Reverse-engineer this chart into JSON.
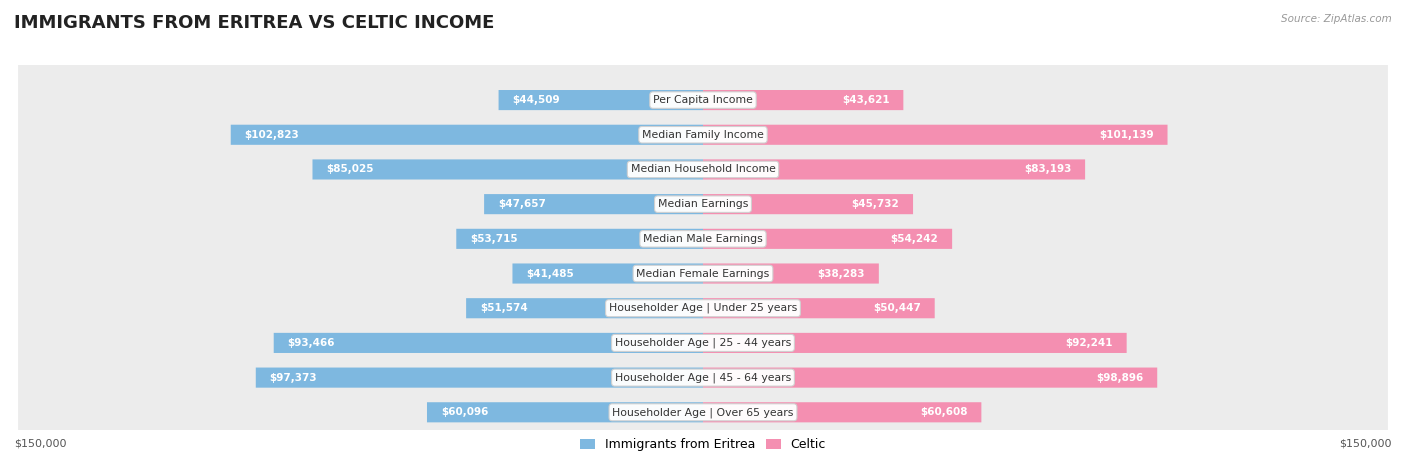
{
  "title": "IMMIGRANTS FROM ERITREA VS CELTIC INCOME",
  "source": "Source: ZipAtlas.com",
  "categories": [
    "Per Capita Income",
    "Median Family Income",
    "Median Household Income",
    "Median Earnings",
    "Median Male Earnings",
    "Median Female Earnings",
    "Householder Age | Under 25 years",
    "Householder Age | 25 - 44 years",
    "Householder Age | 45 - 64 years",
    "Householder Age | Over 65 years"
  ],
  "eritrea_values": [
    44509,
    102823,
    85025,
    47657,
    53715,
    41485,
    51574,
    93466,
    97373,
    60096
  ],
  "celtic_values": [
    43621,
    101139,
    83193,
    45732,
    54242,
    38283,
    50447,
    92241,
    98896,
    60608
  ],
  "eritrea_labels": [
    "$44,509",
    "$102,823",
    "$85,025",
    "$47,657",
    "$53,715",
    "$41,485",
    "$51,574",
    "$93,466",
    "$97,373",
    "$60,096"
  ],
  "celtic_labels": [
    "$43,621",
    "$101,139",
    "$83,193",
    "$45,732",
    "$54,242",
    "$38,283",
    "$50,447",
    "$92,241",
    "$98,896",
    "$60,608"
  ],
  "eritrea_color": "#7eb8e0",
  "celtic_color": "#f48fb1",
  "max_value": 150000,
  "row_bg_color": "#ececec",
  "row_bg_alt": "#f7f7f7",
  "legend_label_eritrea": "Immigrants from Eritrea",
  "legend_label_celtic": "Celtic",
  "axis_label_left": "$150,000",
  "axis_label_right": "$150,000",
  "inside_label_threshold": 25000,
  "title_fontsize": 13,
  "bar_fontsize": 7.5,
  "cat_fontsize": 7.8
}
